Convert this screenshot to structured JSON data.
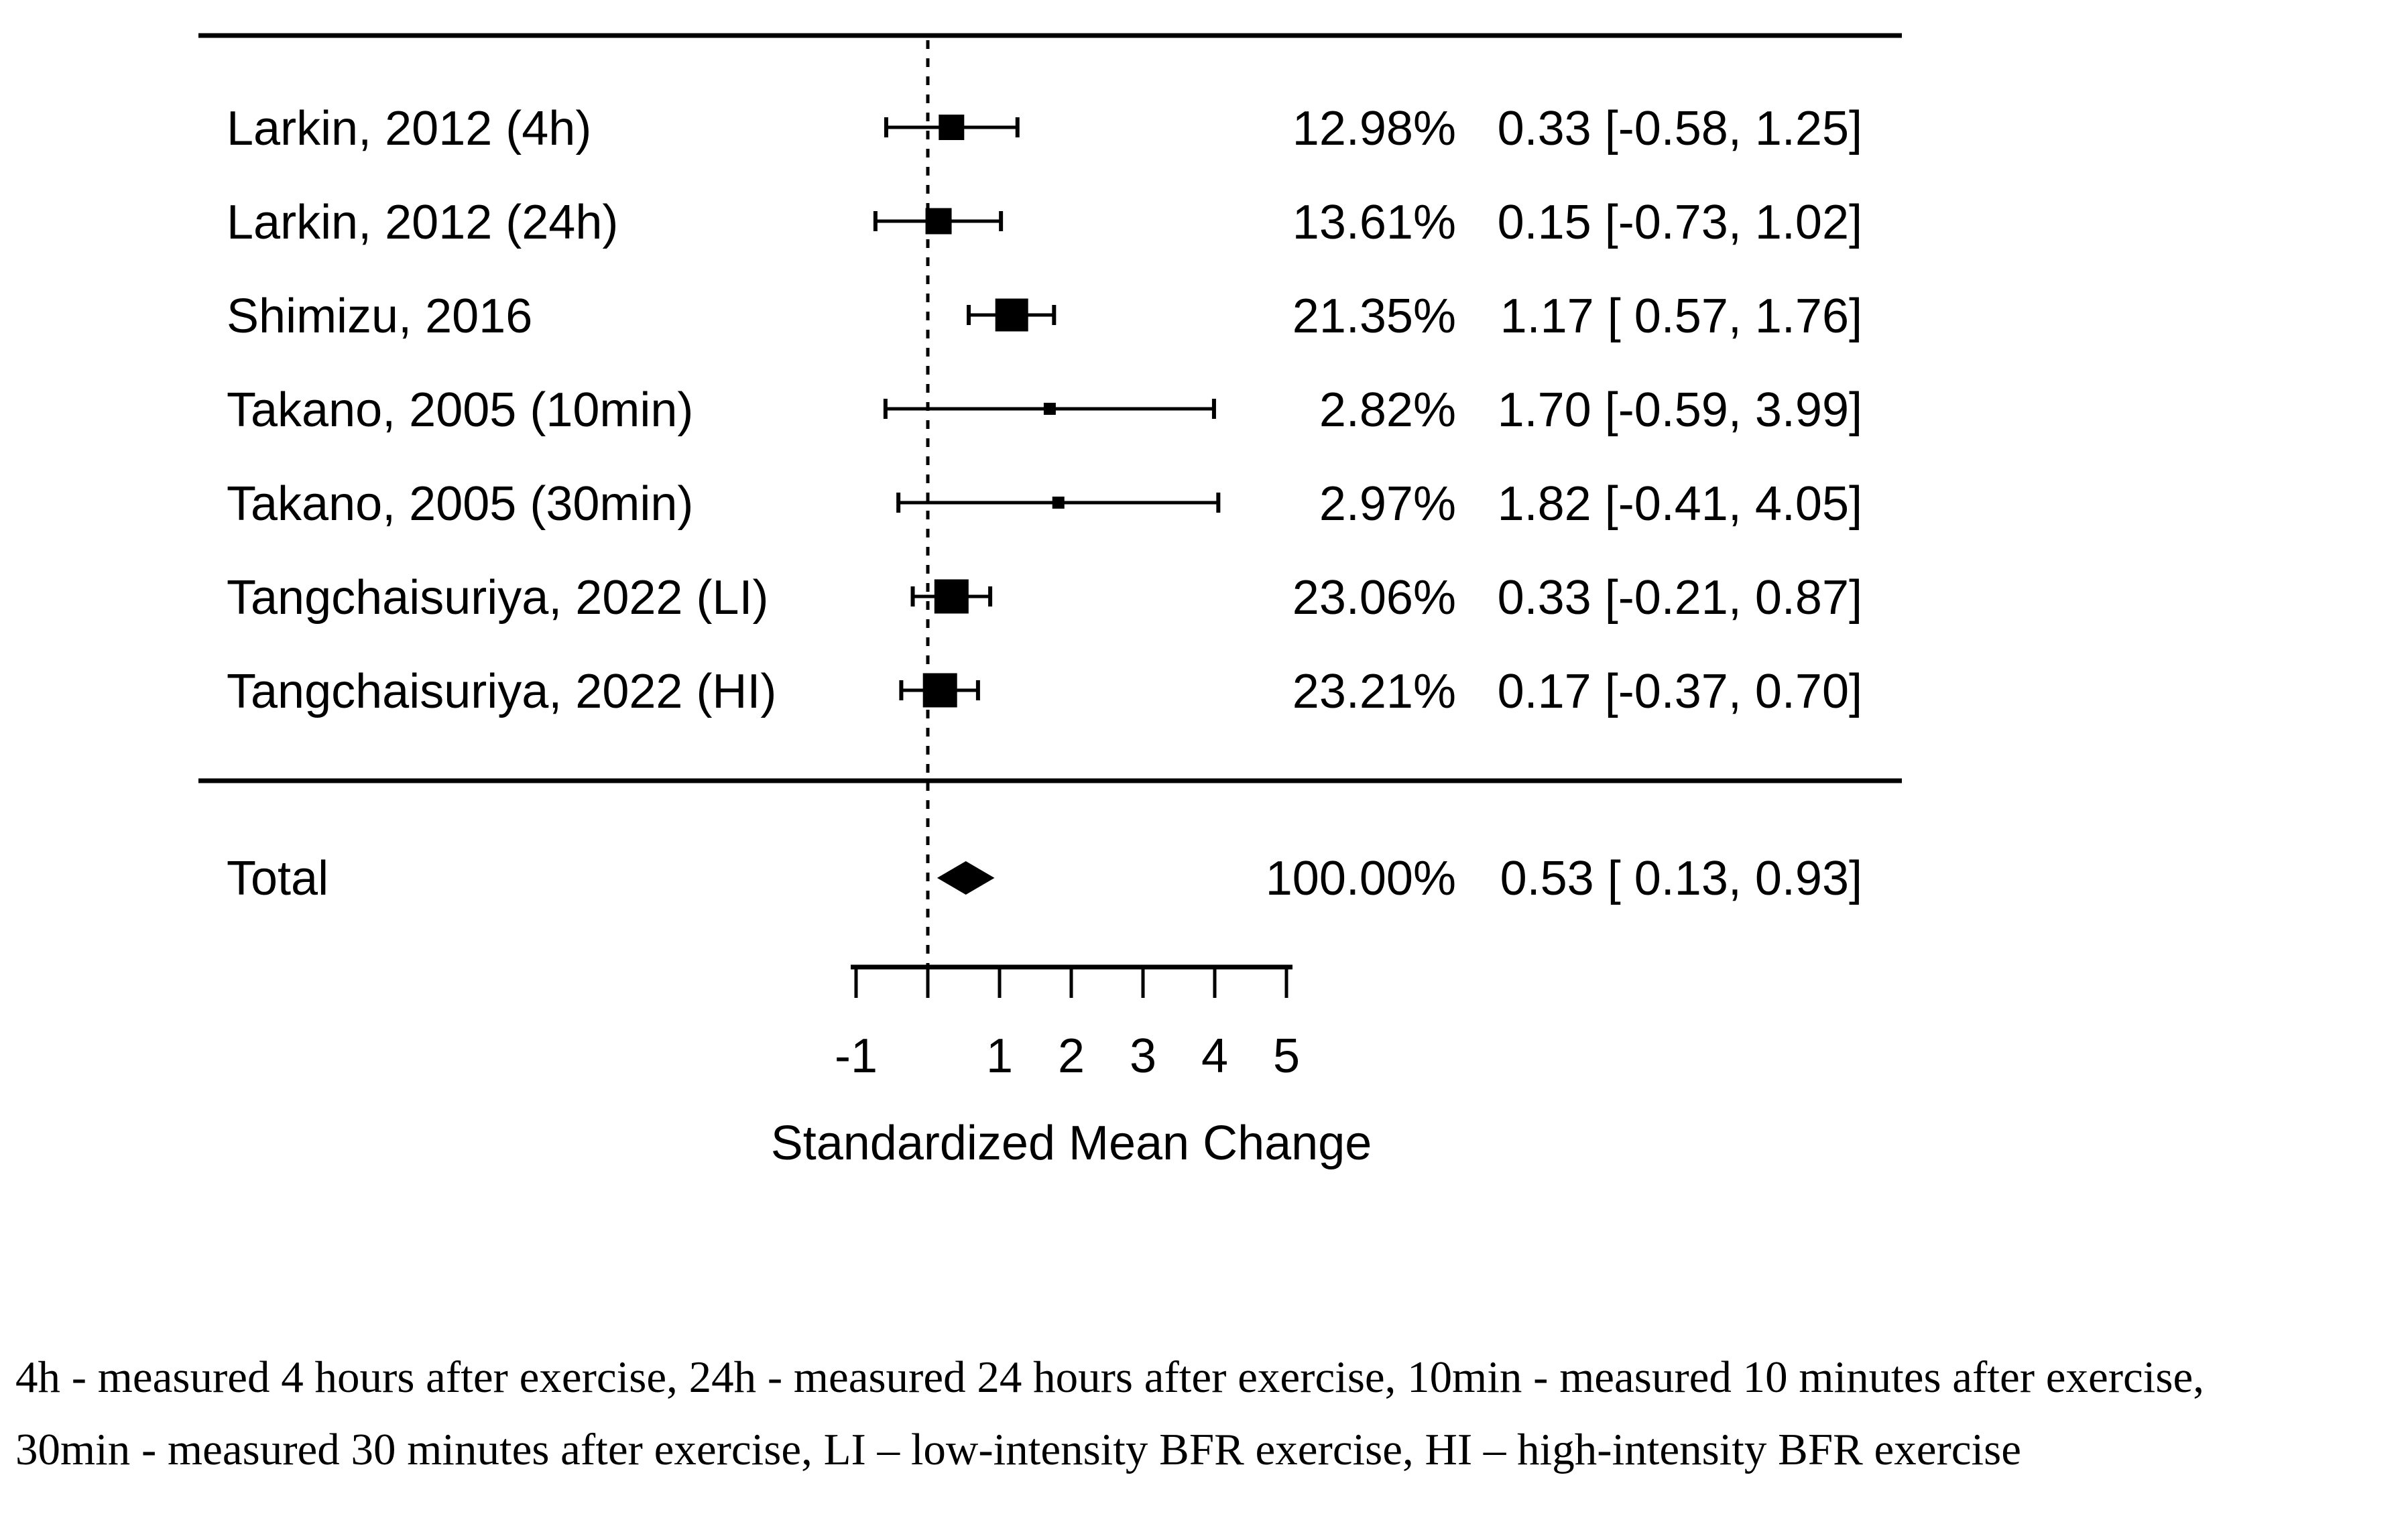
{
  "colors": {
    "ink": "#000000",
    "background": "#ffffff"
  },
  "chart_data": {
    "type": "forest",
    "xlabel": "Standardized Mean Change",
    "xlim": [
      -1,
      5
    ],
    "zero_line": 0,
    "x_tick_marks": [
      -1,
      0,
      1,
      2,
      3,
      4,
      5
    ],
    "x_tick_labels": [
      {
        "value": -1,
        "label": "-1"
      },
      {
        "value": 1,
        "label": "1"
      },
      {
        "value": 2,
        "label": "2"
      },
      {
        "value": 3,
        "label": "3"
      },
      {
        "value": 4,
        "label": "4"
      },
      {
        "value": 5,
        "label": "5"
      }
    ],
    "studies": [
      {
        "label": "Larkin, 2012 (4h)",
        "weight_pct": 12.98,
        "weight_label": "12.98%",
        "estimate": 0.33,
        "ci_low": -0.58,
        "ci_high": 1.25,
        "estimate_label": "0.33 [-0.58, 1.25]"
      },
      {
        "label": "Larkin, 2012 (24h)",
        "weight_pct": 13.61,
        "weight_label": "13.61%",
        "estimate": 0.15,
        "ci_low": -0.73,
        "ci_high": 1.02,
        "estimate_label": "0.15 [-0.73, 1.02]"
      },
      {
        "label": "Shimizu, 2016",
        "weight_pct": 21.35,
        "weight_label": "21.35%",
        "estimate": 1.17,
        "ci_low": 0.57,
        "ci_high": 1.76,
        "estimate_label": "1.17 [ 0.57, 1.76]"
      },
      {
        "label": "Takano, 2005 (10min)",
        "weight_pct": 2.82,
        "weight_label": "2.82%",
        "estimate": 1.7,
        "ci_low": -0.59,
        "ci_high": 3.99,
        "estimate_label": "1.70 [-0.59, 3.99]"
      },
      {
        "label": "Takano, 2005 (30min)",
        "weight_pct": 2.97,
        "weight_label": "2.97%",
        "estimate": 1.82,
        "ci_low": -0.41,
        "ci_high": 4.05,
        "estimate_label": "1.82 [-0.41, 4.05]"
      },
      {
        "label": "Tangchaisuriya, 2022 (LI)",
        "weight_pct": 23.06,
        "weight_label": "23.06%",
        "estimate": 0.33,
        "ci_low": -0.21,
        "ci_high": 0.87,
        "estimate_label": "0.33 [-0.21, 0.87]"
      },
      {
        "label": "Tangchaisuriya, 2022 (HI)",
        "weight_pct": 23.21,
        "weight_label": "23.21%",
        "estimate": 0.17,
        "ci_low": -0.37,
        "ci_high": 0.7,
        "estimate_label": "0.17 [-0.37, 0.70]"
      }
    ],
    "total": {
      "label": "Total",
      "weight_pct": 100.0,
      "weight_label": "100.00%",
      "estimate": 0.53,
      "ci_low": 0.13,
      "ci_high": 0.93,
      "estimate_label": "0.53 [ 0.13, 0.93]"
    }
  },
  "footnote": {
    "line1": "4h - measured 4 hours after exercise, 24h - measured 24 hours after exercise, 10min - measured 10 minutes after exercise,",
    "line2": "30min - measured 30 minutes after exercise, LI – low-intensity BFR exercise, HI – high-intensity BFR exercise"
  }
}
